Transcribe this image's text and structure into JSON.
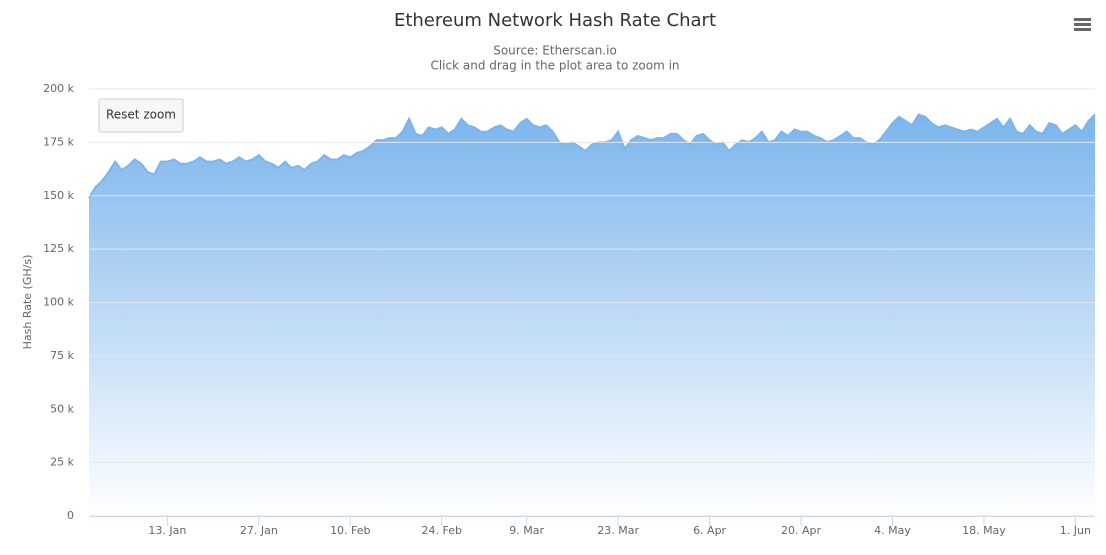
{
  "chart_data": {
    "type": "area",
    "title": "Ethereum Network Hash Rate Chart",
    "subtitle": [
      "Source: Etherscan.io",
      "Click and drag in the plot area to zoom in"
    ],
    "y_axis_label": "Hash Rate (GH/s)",
    "button": "Reset zoom",
    "color": "#7cb5ec",
    "grid": true,
    "categories": [
      null,
      null,
      null,
      null,
      null,
      null,
      null,
      null,
      null,
      null,
      null,
      null,
      "13. Jan",
      null,
      null,
      null,
      null,
      null,
      null,
      null,
      null,
      null,
      null,
      null,
      null,
      null,
      "27. Jan",
      null,
      null,
      null,
      null,
      null,
      null,
      null,
      null,
      null,
      null,
      null,
      null,
      null,
      "10. Feb",
      null,
      null,
      null,
      null,
      null,
      null,
      null,
      null,
      null,
      null,
      null,
      null,
      null,
      "24. Feb",
      null,
      null,
      null,
      null,
      null,
      null,
      null,
      null,
      null,
      null,
      null,
      null,
      "9. Mar",
      null,
      null,
      null,
      null,
      null,
      null,
      null,
      null,
      null,
      null,
      null,
      null,
      null,
      "23. Mar",
      null,
      null,
      null,
      null,
      null,
      null,
      null,
      null,
      null,
      null,
      null,
      null,
      null,
      "6. Apr",
      null,
      null,
      null,
      null,
      null,
      null,
      null,
      null,
      null,
      null,
      null,
      null,
      null,
      "20. Apr",
      null,
      null,
      null,
      null,
      null,
      null,
      null,
      null,
      null,
      null,
      null,
      null,
      null,
      "4. May",
      null,
      null,
      null,
      null,
      null,
      null,
      null,
      null,
      null,
      null,
      null,
      null,
      null,
      "18. May",
      null,
      null,
      null,
      null,
      null,
      null,
      null,
      null,
      null,
      null,
      null,
      null,
      null,
      "1. Jun",
      null,
      null,
      null
    ],
    "values": [
      149000,
      154000,
      157000,
      161000,
      166000,
      162000,
      164000,
      167000,
      165000,
      161000,
      160000,
      166000,
      166000,
      167000,
      165000,
      165000,
      166000,
      168000,
      166000,
      166000,
      167000,
      165000,
      166000,
      168000,
      166000,
      167000,
      169000,
      166000,
      165000,
      163000,
      166000,
      163000,
      164000,
      162000,
      165000,
      166000,
      169000,
      167000,
      167000,
      169000,
      168000,
      170000,
      171000,
      173000,
      176000,
      176000,
      177000,
      177000,
      180000,
      186000,
      179000,
      178000,
      182000,
      181000,
      182000,
      179000,
      181000,
      186000,
      183000,
      182000,
      180000,
      180000,
      182000,
      183000,
      181000,
      180000,
      184000,
      186000,
      183000,
      182000,
      183000,
      180000,
      175000,
      174000,
      175000,
      173000,
      171000,
      174000,
      175000,
      175000,
      176000,
      180000,
      172000,
      176000,
      178000,
      177000,
      176000,
      177000,
      177000,
      179000,
      179000,
      176000,
      174000,
      178000,
      179000,
      176000,
      174000,
      175000,
      171000,
      174000,
      176000,
      175000,
      177000,
      180000,
      175000,
      176000,
      180000,
      178000,
      181000,
      180000,
      180000,
      178000,
      177000,
      175000,
      176000,
      178000,
      180000,
      177000,
      177000,
      175000,
      174000,
      176000,
      180000,
      184000,
      187000,
      185000,
      183000,
      188000,
      187000,
      184000,
      182000,
      183000,
      182000,
      181000,
      180000,
      181000,
      180000,
      182000,
      184000,
      186000,
      182000,
      186000,
      180000,
      179000,
      183000,
      180000,
      179000,
      184000,
      183000,
      179000,
      181000,
      183000,
      180000,
      185000,
      188000
    ],
    "ylim": [
      0,
      200000
    ],
    "yticks": [
      0,
      {
        "value": 25000,
        "label": "25 k"
      },
      {
        "value": 50000,
        "label": "50 k"
      },
      {
        "value": 75000,
        "label": "75 k"
      },
      {
        "value": 100000,
        "label": "100 k"
      },
      {
        "value": 125000,
        "label": "125 k"
      },
      {
        "value": 150000,
        "label": "150 k"
      },
      {
        "value": 175000,
        "label": "175 k"
      },
      {
        "value": 200000,
        "label": "200 k"
      }
    ]
  }
}
